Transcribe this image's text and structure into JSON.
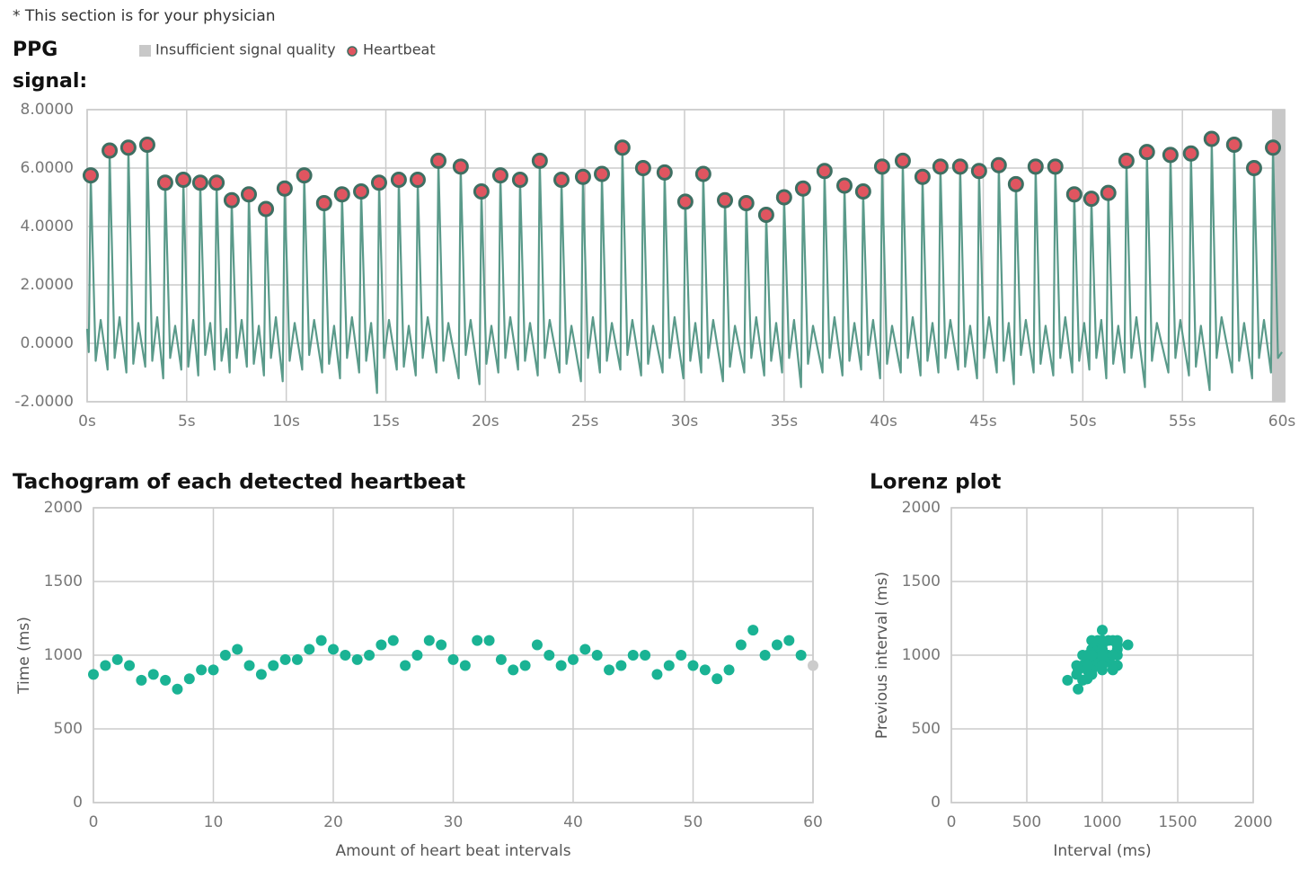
{
  "note": "* This section is for your physician",
  "chart_data": [
    {
      "type": "line",
      "title": "PPG signal:",
      "xlim": [
        0,
        60
      ],
      "xticks": [
        {
          "value": 0,
          "label": "0s"
        },
        {
          "value": 5,
          "label": "5s"
        },
        {
          "value": 10,
          "label": "10s"
        },
        {
          "value": 15,
          "label": "15s"
        },
        {
          "value": 20,
          "label": "20s"
        },
        {
          "value": 25,
          "label": "25s"
        },
        {
          "value": 30,
          "label": "30s"
        },
        {
          "value": 35,
          "label": "35s"
        },
        {
          "value": 40,
          "label": "40s"
        },
        {
          "value": 45,
          "label": "45s"
        },
        {
          "value": 50,
          "label": "50s"
        },
        {
          "value": 55,
          "label": "55s"
        },
        {
          "value": 60,
          "label": "60s"
        }
      ],
      "ylim": [
        -2,
        8
      ],
      "yticks": [
        {
          "value": -2,
          "label": "-2.0000"
        },
        {
          "value": 0,
          "label": "0.0000"
        },
        {
          "value": 2,
          "label": "2.0000"
        },
        {
          "value": 4,
          "label": "4.0000"
        },
        {
          "value": 6,
          "label": "6.0000"
        },
        {
          "value": 8,
          "label": "8.0000"
        }
      ],
      "grid": true,
      "insufficient": {
        "name": "Insufficient signal quality",
        "color": "#c8c8c8",
        "ranges": [
          [
            59.5,
            60
          ]
        ]
      },
      "signal": {
        "color": "#5a9a8a",
        "x": [
          0,
          0.08,
          0.18,
          0.43,
          0.68,
          1.03,
          1.13,
          1.38,
          1.63,
          1.97,
          2.07,
          2.32,
          2.57,
          2.92,
          3.02,
          3.27,
          3.52,
          3.82,
          3.92,
          4.17,
          4.42,
          4.73,
          4.83,
          5.08,
          5.33,
          5.58,
          5.68,
          5.93,
          6.18,
          6.4,
          6.5,
          6.75,
          7.0,
          7.16,
          7.26,
          7.51,
          7.76,
          8.02,
          8.12,
          8.37,
          8.62,
          8.88,
          8.98,
          9.23,
          9.48,
          9.82,
          9.92,
          10.17,
          10.42,
          10.8,
          10.9,
          11.15,
          11.4,
          11.8,
          11.9,
          12.15,
          12.4,
          12.7,
          12.8,
          13.05,
          13.3,
          13.66,
          13.76,
          14.01,
          14.26,
          14.56,
          14.66,
          14.91,
          15.16,
          15.55,
          15.65,
          15.9,
          16.15,
          16.5,
          16.6,
          16.85,
          17.1,
          17.54,
          17.64,
          17.89,
          18.14,
          18.66,
          18.76,
          19.01,
          19.26,
          19.7,
          19.8,
          20.05,
          20.3,
          20.65,
          20.75,
          21.0,
          21.25,
          21.64,
          21.74,
          21.99,
          22.24,
          22.63,
          22.73,
          22.98,
          23.23,
          23.72,
          23.82,
          24.07,
          24.32,
          24.8,
          24.9,
          25.15,
          25.4,
          25.75,
          25.85,
          26.1,
          26.35,
          26.78,
          26.88,
          27.13,
          27.38,
          27.82,
          27.92,
          28.17,
          28.42,
          28.9,
          29.0,
          29.25,
          29.5,
          29.94,
          30.04,
          30.29,
          30.54,
          30.84,
          30.94,
          31.19,
          31.44,
          31.93,
          32.03,
          32.28,
          32.53,
          33.0,
          33.1,
          33.35,
          33.6,
          34.0,
          34.1,
          34.35,
          34.6,
          34.9,
          35.0,
          35.25,
          35.5,
          35.85,
          35.95,
          36.2,
          36.45,
          36.93,
          37.03,
          37.28,
          37.53,
          37.93,
          38.03,
          38.28,
          38.53,
          38.87,
          38.97,
          39.22,
          39.47,
          39.82,
          39.92,
          40.17,
          40.42,
          40.86,
          40.96,
          41.21,
          41.46,
          41.85,
          41.95,
          42.2,
          42.45,
          42.75,
          42.85,
          43.1,
          43.35,
          43.74,
          43.84,
          44.09,
          44.34,
          44.69,
          44.79,
          45.04,
          45.29,
          45.68,
          45.78,
          46.03,
          46.28,
          46.54,
          46.64,
          46.89,
          47.14,
          47.53,
          47.63,
          47.88,
          48.13,
          48.52,
          48.62,
          48.87,
          49.12,
          49.47,
          49.57,
          49.82,
          50.07,
          50.33,
          50.43,
          50.68,
          50.93,
          51.18,
          51.28,
          51.53,
          51.78,
          52.09,
          52.19,
          52.44,
          52.69,
          53.12,
          53.22,
          53.47,
          53.72,
          54.3,
          54.4,
          54.65,
          54.9,
          55.33,
          55.43,
          55.68,
          55.93,
          56.37,
          56.47,
          56.72,
          56.97,
          57.5,
          57.6,
          57.85,
          58.1,
          58.5,
          58.6,
          58.85,
          59.1,
          59.45,
          59.55,
          59.8,
          60
        ],
        "values": [
          0.5,
          -0.3,
          5.75,
          -0.6,
          0.8,
          -0.9,
          6.6,
          -0.5,
          0.9,
          -1.0,
          6.7,
          -0.7,
          0.7,
          -0.8,
          6.8,
          -0.6,
          0.9,
          -1.2,
          5.5,
          -0.5,
          0.6,
          -0.9,
          5.6,
          -0.8,
          0.8,
          -1.1,
          5.5,
          -0.4,
          0.7,
          -0.9,
          5.5,
          -0.6,
          0.5,
          -1.0,
          4.9,
          -0.5,
          0.8,
          -0.8,
          5.1,
          -0.7,
          0.6,
          -1.1,
          4.6,
          -0.5,
          0.9,
          -1.3,
          5.3,
          -0.6,
          0.7,
          -0.9,
          5.75,
          -0.4,
          0.8,
          -1.0,
          4.8,
          -0.7,
          0.6,
          -1.2,
          5.1,
          -0.5,
          0.9,
          -1.0,
          5.2,
          -0.6,
          0.7,
          -1.7,
          5.5,
          -0.5,
          0.8,
          -0.9,
          5.6,
          -0.8,
          0.6,
          -1.1,
          5.6,
          -0.5,
          0.9,
          -1.0,
          6.25,
          -0.6,
          0.7,
          -1.2,
          6.05,
          -0.4,
          0.8,
          -1.4,
          5.2,
          -0.7,
          0.6,
          -1.0,
          5.75,
          -0.5,
          0.9,
          -0.9,
          5.6,
          -0.6,
          0.7,
          -1.1,
          6.25,
          -0.5,
          0.8,
          -1.0,
          5.6,
          -0.7,
          0.6,
          -1.3,
          5.7,
          -0.5,
          0.9,
          -1.0,
          5.8,
          -0.6,
          0.7,
          -0.9,
          6.7,
          -0.4,
          0.8,
          -1.1,
          6.0,
          -0.7,
          0.6,
          -1.0,
          5.85,
          -0.5,
          0.9,
          -1.2,
          4.85,
          -0.6,
          0.7,
          -1.0,
          5.8,
          -0.5,
          0.8,
          -1.3,
          4.9,
          -0.8,
          0.6,
          -1.0,
          4.8,
          -0.5,
          0.9,
          -1.1,
          4.4,
          -0.6,
          0.7,
          -1.0,
          5.0,
          -0.5,
          0.8,
          -1.5,
          5.3,
          -0.7,
          0.6,
          -1.0,
          5.9,
          -0.5,
          0.9,
          -1.1,
          5.4,
          -0.6,
          0.7,
          -0.9,
          5.2,
          -0.4,
          0.8,
          -1.2,
          6.05,
          -0.7,
          0.6,
          -1.0,
          6.25,
          -0.5,
          0.9,
          -1.1,
          5.7,
          -0.6,
          0.7,
          -1.0,
          6.05,
          -0.5,
          0.8,
          -0.9,
          6.05,
          -0.8,
          0.6,
          -1.2,
          5.9,
          -0.5,
          0.9,
          -1.0,
          6.1,
          -0.6,
          0.7,
          -1.4,
          5.45,
          -0.4,
          0.8,
          -1.0,
          6.05,
          -0.7,
          0.6,
          -1.1,
          6.05,
          -0.5,
          0.9,
          -1.0,
          5.1,
          -0.6,
          0.7,
          -0.9,
          4.95,
          -0.5,
          0.8,
          -1.2,
          5.15,
          -0.7,
          0.6,
          -1.0,
          6.25,
          -0.5,
          0.9,
          -1.5,
          6.55,
          -0.6,
          0.7,
          -1.0,
          6.45,
          -0.5,
          0.8,
          -1.1,
          6.5,
          -0.8,
          0.6,
          -1.6,
          7.0,
          -0.5,
          0.9,
          -1.0,
          6.8,
          -0.6,
          0.7,
          -1.2,
          6.0,
          -0.5,
          0.8,
          -1.0,
          6.7,
          -0.5,
          -0.3
        ]
      },
      "heartbeats": {
        "name": "Heartbeat",
        "color": "#e05560",
        "edge": "#3e6f62",
        "x": [
          0.18,
          1.13,
          2.07,
          3.02,
          3.92,
          4.83,
          5.68,
          6.5,
          7.26,
          8.12,
          8.98,
          9.92,
          10.9,
          11.9,
          12.8,
          13.76,
          14.66,
          15.65,
          16.6,
          17.64,
          18.76,
          19.8,
          20.75,
          21.74,
          22.73,
          23.82,
          24.9,
          25.85,
          26.88,
          27.92,
          29.0,
          30.04,
          30.94,
          32.03,
          33.1,
          34.1,
          35.0,
          35.95,
          37.03,
          38.03,
          38.97,
          39.92,
          40.96,
          41.95,
          42.85,
          43.84,
          44.79,
          45.78,
          46.64,
          47.63,
          48.62,
          49.57,
          50.43,
          51.28,
          52.19,
          53.22,
          54.4,
          55.43,
          56.47,
          57.6,
          58.6,
          59.55
        ],
        "values": [
          5.75,
          6.6,
          6.7,
          6.8,
          5.5,
          5.6,
          5.5,
          5.5,
          4.9,
          5.1,
          4.6,
          5.3,
          5.75,
          4.8,
          5.1,
          5.2,
          5.5,
          5.6,
          5.6,
          6.25,
          6.05,
          5.2,
          5.75,
          5.6,
          6.25,
          5.6,
          5.7,
          5.8,
          6.7,
          6.0,
          5.85,
          4.85,
          5.8,
          4.9,
          4.8,
          4.4,
          5.0,
          5.3,
          5.9,
          5.4,
          5.2,
          6.05,
          6.25,
          5.7,
          6.05,
          6.05,
          5.9,
          6.1,
          5.45,
          6.05,
          6.05,
          5.1,
          4.95,
          5.15,
          6.25,
          6.55,
          6.45,
          6.5,
          7.0,
          6.8,
          6.0,
          6.7
        ]
      }
    },
    {
      "type": "scatter",
      "title": "Tachogram of each detected heartbeat",
      "xlabel": "Amount of heart beat intervals",
      "ylabel": "Time (ms)",
      "xlim": [
        0,
        60
      ],
      "xticks": [
        0,
        10,
        20,
        30,
        40,
        50,
        60
      ],
      "ylim": [
        0,
        2000
      ],
      "yticks": [
        0,
        500,
        1000,
        1500,
        2000
      ],
      "grid": true,
      "color": "#1ab394",
      "last_color": "#cccccc",
      "x": [
        0,
        1,
        2,
        3,
        4,
        5,
        6,
        7,
        8,
        9,
        10,
        11,
        12,
        13,
        14,
        15,
        16,
        17,
        18,
        19,
        20,
        21,
        22,
        23,
        24,
        25,
        26,
        27,
        28,
        29,
        30,
        31,
        32,
        33,
        34,
        35,
        36,
        37,
        38,
        39,
        40,
        41,
        42,
        43,
        44,
        45,
        46,
        47,
        48,
        49,
        50,
        51,
        52,
        53,
        54,
        55,
        56,
        57,
        58,
        59,
        60
      ],
      "values": [
        870,
        930,
        970,
        930,
        830,
        870,
        830,
        770,
        840,
        900,
        900,
        1000,
        1040,
        930,
        870,
        930,
        970,
        970,
        1040,
        1100,
        1040,
        1000,
        970,
        1000,
        1070,
        1100,
        930,
        1000,
        1100,
        1070,
        970,
        930,
        1100,
        1100,
        970,
        900,
        930,
        1070,
        1000,
        930,
        970,
        1040,
        1000,
        900,
        930,
        1000,
        1000,
        870,
        930,
        1000,
        930,
        900,
        840,
        900,
        1070,
        1170,
        1000,
        1070,
        1100,
        1000,
        930
      ]
    },
    {
      "type": "scatter",
      "title": "Lorenz plot",
      "xlabel": "Interval (ms)",
      "ylabel": "Previous interval (ms)",
      "xlim": [
        0,
        2000
      ],
      "xticks": [
        0,
        500,
        1000,
        1500,
        2000
      ],
      "ylim": [
        0,
        2000
      ],
      "yticks": [
        0,
        500,
        1000,
        1500,
        2000
      ],
      "grid": true,
      "color": "#1ab394",
      "x": [
        930,
        970,
        930,
        830,
        870,
        830,
        770,
        840,
        900,
        900,
        1000,
        1040,
        930,
        870,
        930,
        970,
        970,
        1040,
        1100,
        1040,
        1000,
        970,
        1000,
        1070,
        1100,
        930,
        1000,
        1100,
        1070,
        970,
        930,
        1100,
        1100,
        970,
        900,
        930,
        1070,
        1000,
        930,
        970,
        1040,
        1000,
        900,
        930,
        1000,
        1000,
        870,
        930,
        1000,
        930,
        900,
        840,
        900,
        1070,
        1170,
        1000,
        1070,
        1100,
        1000
      ],
      "values": [
        870,
        930,
        970,
        930,
        830,
        870,
        830,
        770,
        840,
        900,
        900,
        1000,
        1040,
        930,
        870,
        930,
        970,
        970,
        1040,
        1100,
        1040,
        1000,
        970,
        1000,
        1070,
        1100,
        930,
        1000,
        1100,
        1070,
        970,
        930,
        1100,
        1100,
        970,
        900,
        930,
        1070,
        1000,
        930,
        970,
        1040,
        1000,
        900,
        930,
        1000,
        1000,
        870,
        930,
        1000,
        930,
        900,
        840,
        900,
        1070,
        1170,
        1000,
        1070,
        1100
      ]
    }
  ]
}
